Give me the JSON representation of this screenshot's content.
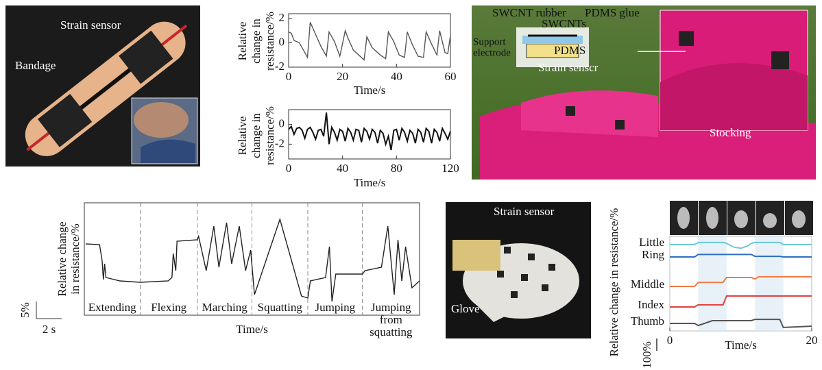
{
  "bandage_photo": {
    "strain_sensor": "Strain sensor",
    "bandage": "Bandage"
  },
  "stocking_photo": {
    "swcnt_rubber": "SWCNT rubber",
    "pdms_glue": "PDMS glue",
    "swcnts": "SWCNTs",
    "support_electrode": [
      "Support",
      "electrode"
    ],
    "pdms": "PDMS",
    "strain_sensor": "Strain senscr",
    "stocking": "Stocking"
  },
  "glove_photo": {
    "strain_sensor": "Strain sensor",
    "glove": "Glove"
  },
  "chart_data": [
    {
      "type": "line",
      "ylabel": [
        "Relative",
        "change in",
        "resistance/%"
      ],
      "xlabel": "Time/s",
      "color": "#555555",
      "x": [
        0,
        1,
        2,
        4,
        6,
        7,
        8,
        10,
        12,
        14,
        15,
        17,
        19,
        21,
        22,
        24,
        26,
        28,
        29,
        31,
        34,
        36,
        37,
        39,
        41,
        43,
        44,
        46,
        48,
        50,
        51,
        53,
        55,
        56,
        58,
        59,
        60
      ],
      "values": [
        0.9,
        0.8,
        0.2,
        0,
        -0.8,
        -1.2,
        1.7,
        0.7,
        -0.3,
        -1.1,
        0.9,
        0.1,
        -1.1,
        1.0,
        0.4,
        -0.6,
        -1.0,
        -1.4,
        0.5,
        -0.4,
        -1.0,
        -1.3,
        0.9,
        0.1,
        -1.0,
        -1.2,
        0.9,
        -0.2,
        -1.1,
        -1.2,
        0.9,
        -0.1,
        -1.0,
        1.0,
        -0.8,
        -0.9,
        0.6
      ],
      "xlim": [
        0,
        60
      ],
      "ylim": [
        -2,
        2.4
      ],
      "xticks": [
        0,
        20,
        40,
        60
      ],
      "yticks": [
        -2,
        0,
        2
      ]
    },
    {
      "type": "line",
      "ylabel": [
        "Relative",
        "change in",
        "resistance/%"
      ],
      "xlabel": "Time/s",
      "color": "#111111",
      "x": [
        0,
        2,
        4,
        6,
        8,
        10,
        12,
        14,
        16,
        18,
        20,
        22,
        24,
        26,
        28,
        30,
        32,
        34,
        36,
        38,
        40,
        42,
        44,
        46,
        48,
        50,
        52,
        54,
        56,
        58,
        60,
        62,
        64,
        66,
        68,
        70,
        72,
        74,
        76,
        78,
        80,
        82,
        84,
        86,
        88,
        90,
        92,
        94,
        96,
        98,
        100,
        102,
        104,
        106,
        108,
        110,
        112,
        114,
        116,
        118,
        120
      ],
      "values": [
        -0.5,
        -0.2,
        -1.0,
        -0.4,
        -0.3,
        -0.6,
        -1.4,
        -0.5,
        -0.3,
        -0.8,
        -1.5,
        -0.6,
        -0.5,
        -1.2,
        1.2,
        -2.0,
        -0.3,
        -0.8,
        -1.6,
        -0.5,
        -0.7,
        -1.7,
        -0.4,
        -0.8,
        -1.6,
        -0.5,
        -0.6,
        -1.8,
        -0.4,
        -0.7,
        -1.5,
        -0.5,
        -0.8,
        -1.9,
        -0.6,
        -0.9,
        -2.0,
        -1.2,
        -2.6,
        -0.6,
        -0.5,
        -1.6,
        -0.4,
        -0.8,
        -1.7,
        -0.6,
        -0.9,
        -1.9,
        -0.5,
        -0.8,
        -1.8,
        -0.4,
        -0.7,
        -1.9,
        -0.5,
        -0.8,
        -1.7,
        -0.4,
        -0.9,
        -1.5,
        -0.7
      ],
      "xlim": [
        0,
        120
      ],
      "ylim": [
        -3.5,
        1.5
      ],
      "xticks": [
        0,
        40,
        80,
        120
      ],
      "yticks": [
        -2,
        0
      ]
    },
    {
      "type": "line",
      "ylabel": [
        "Relative change",
        "in resistance/%"
      ],
      "xlabel": "Time/s",
      "color": "#222222",
      "x": [
        0.1,
        1.2,
        1.4,
        1.5,
        1.6,
        1.7,
        2.8,
        4.4,
        6.6,
        6.9,
        7.0,
        7.2,
        7.3,
        8.9,
        9.0,
        9.6,
        10.2,
        10.6,
        11.2,
        11.6,
        12.2,
        12.7,
        13.1,
        13.4,
        15.4,
        17.1,
        17.6,
        17.8,
        19.0,
        19.3,
        19.5,
        19.8,
        21.9,
        22.1,
        23.4,
        23.9,
        24.4,
        24.7,
        25.0,
        25.3,
        25.8,
        26.4
      ],
      "values": [
        20.8,
        20.6,
        16,
        10.4,
        15,
        11,
        10,
        9.6,
        10,
        11,
        18,
        13,
        21.6,
        22,
        23,
        13,
        26,
        14,
        27,
        15,
        26,
        13,
        19,
        6,
        28,
        5.6,
        5,
        10,
        11,
        20,
        4,
        12,
        12,
        13,
        14,
        26,
        6,
        22,
        10,
        20,
        8,
        10
      ],
      "xlim": [
        0,
        26.4
      ],
      "ylim": [
        0,
        32.8
      ],
      "boundaries": [
        4.4,
        8.9,
        13.2,
        17.6,
        21.9
      ],
      "segments": [
        [
          "Extending"
        ],
        [
          "Flexing"
        ],
        [
          "Marching"
        ],
        [
          "Squatting"
        ],
        [
          "Jumping"
        ],
        [
          "Jumping",
          "from",
          "squatting"
        ]
      ],
      "scale_bar": {
        "y": 5,
        "y_label": "5%",
        "x": 2,
        "x_label": "2 s"
      }
    },
    {
      "type": "line",
      "ylabel": [
        "Relative change in resistance/%"
      ],
      "xlabel": "Time/s",
      "x": [
        0,
        3.5,
        4,
        6,
        7.5,
        8,
        9,
        10,
        11,
        11.5,
        12,
        12.5,
        15.5,
        16,
        18,
        20
      ],
      "series": [
        {
          "name": "Little",
          "color": "#6cc9d6",
          "values": [
            0,
            0,
            17,
            17,
            17,
            10,
            -20,
            -30,
            -10,
            10,
            17,
            17,
            17,
            0,
            0,
            0
          ]
        },
        {
          "name": "Ring",
          "color": "#2e6fc0",
          "values": [
            0,
            0,
            20,
            20,
            20,
            20,
            20,
            20,
            20,
            20,
            5,
            5,
            5,
            0,
            0,
            0
          ]
        },
        {
          "name": "Middle",
          "color": "#f07b3f",
          "values": [
            0,
            0,
            33,
            33,
            33,
            72,
            72,
            72,
            72,
            72,
            60,
            78,
            78,
            78,
            78,
            78
          ]
        },
        {
          "name": "Index",
          "color": "#e0403f",
          "values": [
            0,
            0,
            17,
            17,
            17,
            89,
            89,
            89,
            89,
            89,
            89,
            89,
            89,
            89,
            89,
            89
          ]
        },
        {
          "name": "Thumb",
          "color": "#555555",
          "values": [
            0,
            0,
            -17,
            22,
            22,
            22,
            22,
            22,
            22,
            22,
            33,
            33,
            33,
            -33,
            -28,
            -22
          ]
        }
      ],
      "xlim": [
        0,
        20
      ],
      "xticks": [
        0,
        20
      ],
      "highlights": [
        [
          4,
          8
        ],
        [
          12,
          16
        ]
      ],
      "scale_bar": {
        "value": 100,
        "label": "100%"
      }
    }
  ]
}
